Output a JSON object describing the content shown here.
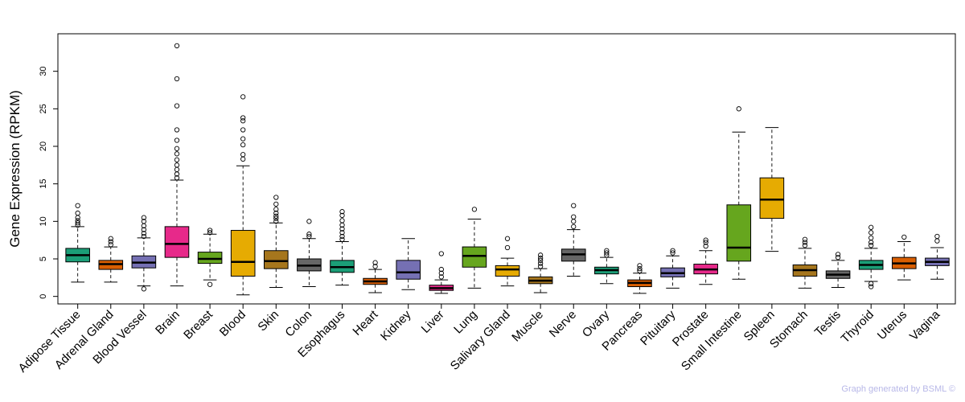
{
  "chart_data": {
    "type": "boxplot",
    "ylabel": "Gene Expression (RPKM)",
    "ylim": [
      -1,
      35
    ],
    "yticks": [
      0,
      5,
      10,
      15,
      20,
      25,
      30
    ],
    "highlight": {
      "category": "Brain",
      "color": "#ff0000"
    },
    "colors": {
      "teal": "#1b9e77",
      "orange": "#d95f02",
      "purple": "#7570b3",
      "magenta": "#e7298a",
      "green": "#66a61e",
      "gold": "#e6ab02",
      "brown": "#a6761d",
      "gray": "#666666"
    },
    "boxes": [
      {
        "label": "Adipose Tissue",
        "color": "#1b9e77",
        "min": 1.9,
        "q1": 4.6,
        "median": 5.5,
        "q3": 6.4,
        "max": 9.3,
        "outliers": [
          9.5,
          9.8,
          10.1,
          10.5,
          11.1,
          12.1
        ]
      },
      {
        "label": "Adrenal Gland",
        "color": "#d95f02",
        "min": 1.9,
        "q1": 3.6,
        "median": 4.3,
        "q3": 4.8,
        "max": 6.6,
        "outliers": [
          6.9,
          7.3,
          7.7
        ]
      },
      {
        "label": "Blood Vessel",
        "color": "#7570b3",
        "min": 1.4,
        "q1": 3.8,
        "median": 4.5,
        "q3": 5.4,
        "max": 7.8,
        "outliers": [
          1.0,
          8.0,
          8.4,
          8.9,
          9.4,
          10.0,
          10.5
        ]
      },
      {
        "label": "Brain",
        "color": "#e7298a",
        "min": 1.4,
        "q1": 5.2,
        "median": 7.0,
        "q3": 9.3,
        "max": 15.5,
        "outliers": [
          15.8,
          16.3,
          16.9,
          17.5,
          18.2,
          19.0,
          19.7,
          20.8,
          22.2,
          25.4,
          29.0,
          33.4
        ]
      },
      {
        "label": "Breast",
        "color": "#66a61e",
        "min": 2.2,
        "q1": 4.4,
        "median": 5.0,
        "q3": 5.9,
        "max": 8.3,
        "outliers": [
          1.6,
          8.5,
          8.8
        ]
      },
      {
        "label": "Blood",
        "color": "#e6ab02",
        "min": 0.2,
        "q1": 2.7,
        "median": 4.6,
        "q3": 8.8,
        "max": 17.4,
        "outliers": [
          18.3,
          18.9,
          20.2,
          21.0,
          22.2,
          23.4,
          23.8,
          26.6
        ]
      },
      {
        "label": "Skin",
        "color": "#a6761d",
        "min": 1.2,
        "q1": 3.7,
        "median": 4.7,
        "q3": 6.1,
        "max": 9.8,
        "outliers": [
          10.0,
          10.4,
          10.7,
          11.1,
          11.6,
          12.3,
          13.2
        ]
      },
      {
        "label": "Colon",
        "color": "#666666",
        "min": 1.3,
        "q1": 3.4,
        "median": 4.1,
        "q3": 5.0,
        "max": 7.7,
        "outliers": [
          8.0,
          8.3,
          10.0
        ]
      },
      {
        "label": "Esophagus",
        "color": "#1b9e77",
        "min": 1.5,
        "q1": 3.2,
        "median": 3.9,
        "q3": 4.8,
        "max": 7.3,
        "outliers": [
          7.6,
          8.0,
          8.5,
          9.0,
          9.5,
          10.1,
          10.8,
          11.3
        ]
      },
      {
        "label": "Heart",
        "color": "#d95f02",
        "min": 0.5,
        "q1": 1.6,
        "median": 2.0,
        "q3": 2.4,
        "max": 3.6,
        "outliers": [
          4.0,
          4.5
        ]
      },
      {
        "label": "Kidney",
        "color": "#7570b3",
        "min": 0.9,
        "q1": 2.3,
        "median": 3.2,
        "q3": 4.8,
        "max": 7.7,
        "outliers": []
      },
      {
        "label": "Liver",
        "color": "#e7298a",
        "min": 0.4,
        "q1": 0.8,
        "median": 1.1,
        "q3": 1.5,
        "max": 2.2,
        "outliers": [
          2.6,
          3.1,
          3.6,
          5.7
        ]
      },
      {
        "label": "Lung",
        "color": "#66a61e",
        "min": 1.1,
        "q1": 3.9,
        "median": 5.4,
        "q3": 6.6,
        "max": 10.3,
        "outliers": [
          11.6
        ]
      },
      {
        "label": "Salivary Gland",
        "color": "#e6ab02",
        "min": 1.4,
        "q1": 2.7,
        "median": 3.6,
        "q3": 4.1,
        "max": 5.1,
        "outliers": [
          6.5,
          7.7
        ]
      },
      {
        "label": "Muscle",
        "color": "#a6761d",
        "min": 0.5,
        "q1": 1.7,
        "median": 2.1,
        "q3": 2.6,
        "max": 3.7,
        "outliers": [
          4.0,
          4.4,
          4.8,
          5.1,
          5.5
        ]
      },
      {
        "label": "Nerve",
        "color": "#666666",
        "min": 2.7,
        "q1": 4.7,
        "median": 5.6,
        "q3": 6.3,
        "max": 8.9,
        "outliers": [
          9.3,
          10.0,
          10.6,
          12.1
        ]
      },
      {
        "label": "Ovary",
        "color": "#1b9e77",
        "min": 1.7,
        "q1": 3.0,
        "median": 3.5,
        "q3": 3.9,
        "max": 5.2,
        "outliers": [
          5.5,
          5.8,
          6.1
        ]
      },
      {
        "label": "Pancreas",
        "color": "#d95f02",
        "min": 0.4,
        "q1": 1.3,
        "median": 1.8,
        "q3": 2.2,
        "max": 3.1,
        "outliers": [
          3.4,
          3.7,
          4.1
        ]
      },
      {
        "label": "Pituitary",
        "color": "#7570b3",
        "min": 1.1,
        "q1": 2.6,
        "median": 3.1,
        "q3": 3.8,
        "max": 5.4,
        "outliers": [
          5.8,
          6.1
        ]
      },
      {
        "label": "Prostate",
        "color": "#e7298a",
        "min": 1.6,
        "q1": 3.0,
        "median": 3.6,
        "q3": 4.3,
        "max": 6.1,
        "outliers": [
          6.7,
          7.2,
          7.5
        ]
      },
      {
        "label": "Small Intestine",
        "color": "#66a61e",
        "min": 2.3,
        "q1": 4.7,
        "median": 6.5,
        "q3": 12.2,
        "max": 21.9,
        "outliers": [
          25.0
        ]
      },
      {
        "label": "Spleen",
        "color": "#e6ab02",
        "min": 6.0,
        "q1": 10.4,
        "median": 12.9,
        "q3": 15.8,
        "max": 22.5,
        "outliers": []
      },
      {
        "label": "Stomach",
        "color": "#a6761d",
        "min": 1.1,
        "q1": 2.7,
        "median": 3.5,
        "q3": 4.2,
        "max": 6.4,
        "outliers": [
          6.8,
          7.2,
          7.6
        ]
      },
      {
        "label": "Testis",
        "color": "#666666",
        "min": 1.2,
        "q1": 2.4,
        "median": 2.9,
        "q3": 3.4,
        "max": 4.8,
        "outliers": [
          5.2,
          5.6
        ]
      },
      {
        "label": "Thyroid",
        "color": "#1b9e77",
        "min": 2.0,
        "q1": 3.6,
        "median": 4.2,
        "q3": 4.8,
        "max": 6.4,
        "outliers": [
          1.3,
          1.7,
          6.8,
          7.2,
          7.8,
          8.5,
          9.2
        ]
      },
      {
        "label": "Uterus",
        "color": "#d95f02",
        "min": 2.2,
        "q1": 3.7,
        "median": 4.4,
        "q3": 5.2,
        "max": 7.3,
        "outliers": [
          7.9
        ]
      },
      {
        "label": "Vagina",
        "color": "#7570b3",
        "min": 2.3,
        "q1": 4.1,
        "median": 4.6,
        "q3": 5.1,
        "max": 6.5,
        "outliers": [
          7.4,
          8.0
        ]
      }
    ]
  },
  "footer": {
    "credit": "Graph generated by BSML ©"
  }
}
